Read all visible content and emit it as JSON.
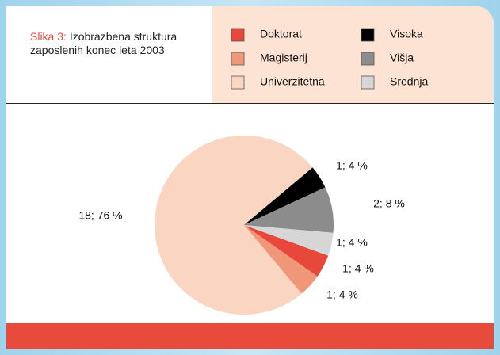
{
  "chart_data": {
    "type": "pie",
    "title_label": "Slika 3:",
    "title": "Izobrazbena struktura zaposlenih konec leta 2003",
    "categories": [
      "Doktorat",
      "Magisterij",
      "Univerzitetna",
      "Visoka",
      "Višja",
      "Srednja"
    ],
    "values": [
      1,
      1,
      18,
      1,
      2,
      1
    ],
    "value_labels": [
      "1; 4 %",
      "1; 4 %",
      "18; 76 %",
      "1; 4 %",
      "2; 8 %",
      "1; 4 %"
    ],
    "colors": [
      "#e8473c",
      "#f0977a",
      "#fad5c2",
      "#000000",
      "#8c8c8c",
      "#d6d6d6"
    ],
    "legend": "top-right"
  }
}
